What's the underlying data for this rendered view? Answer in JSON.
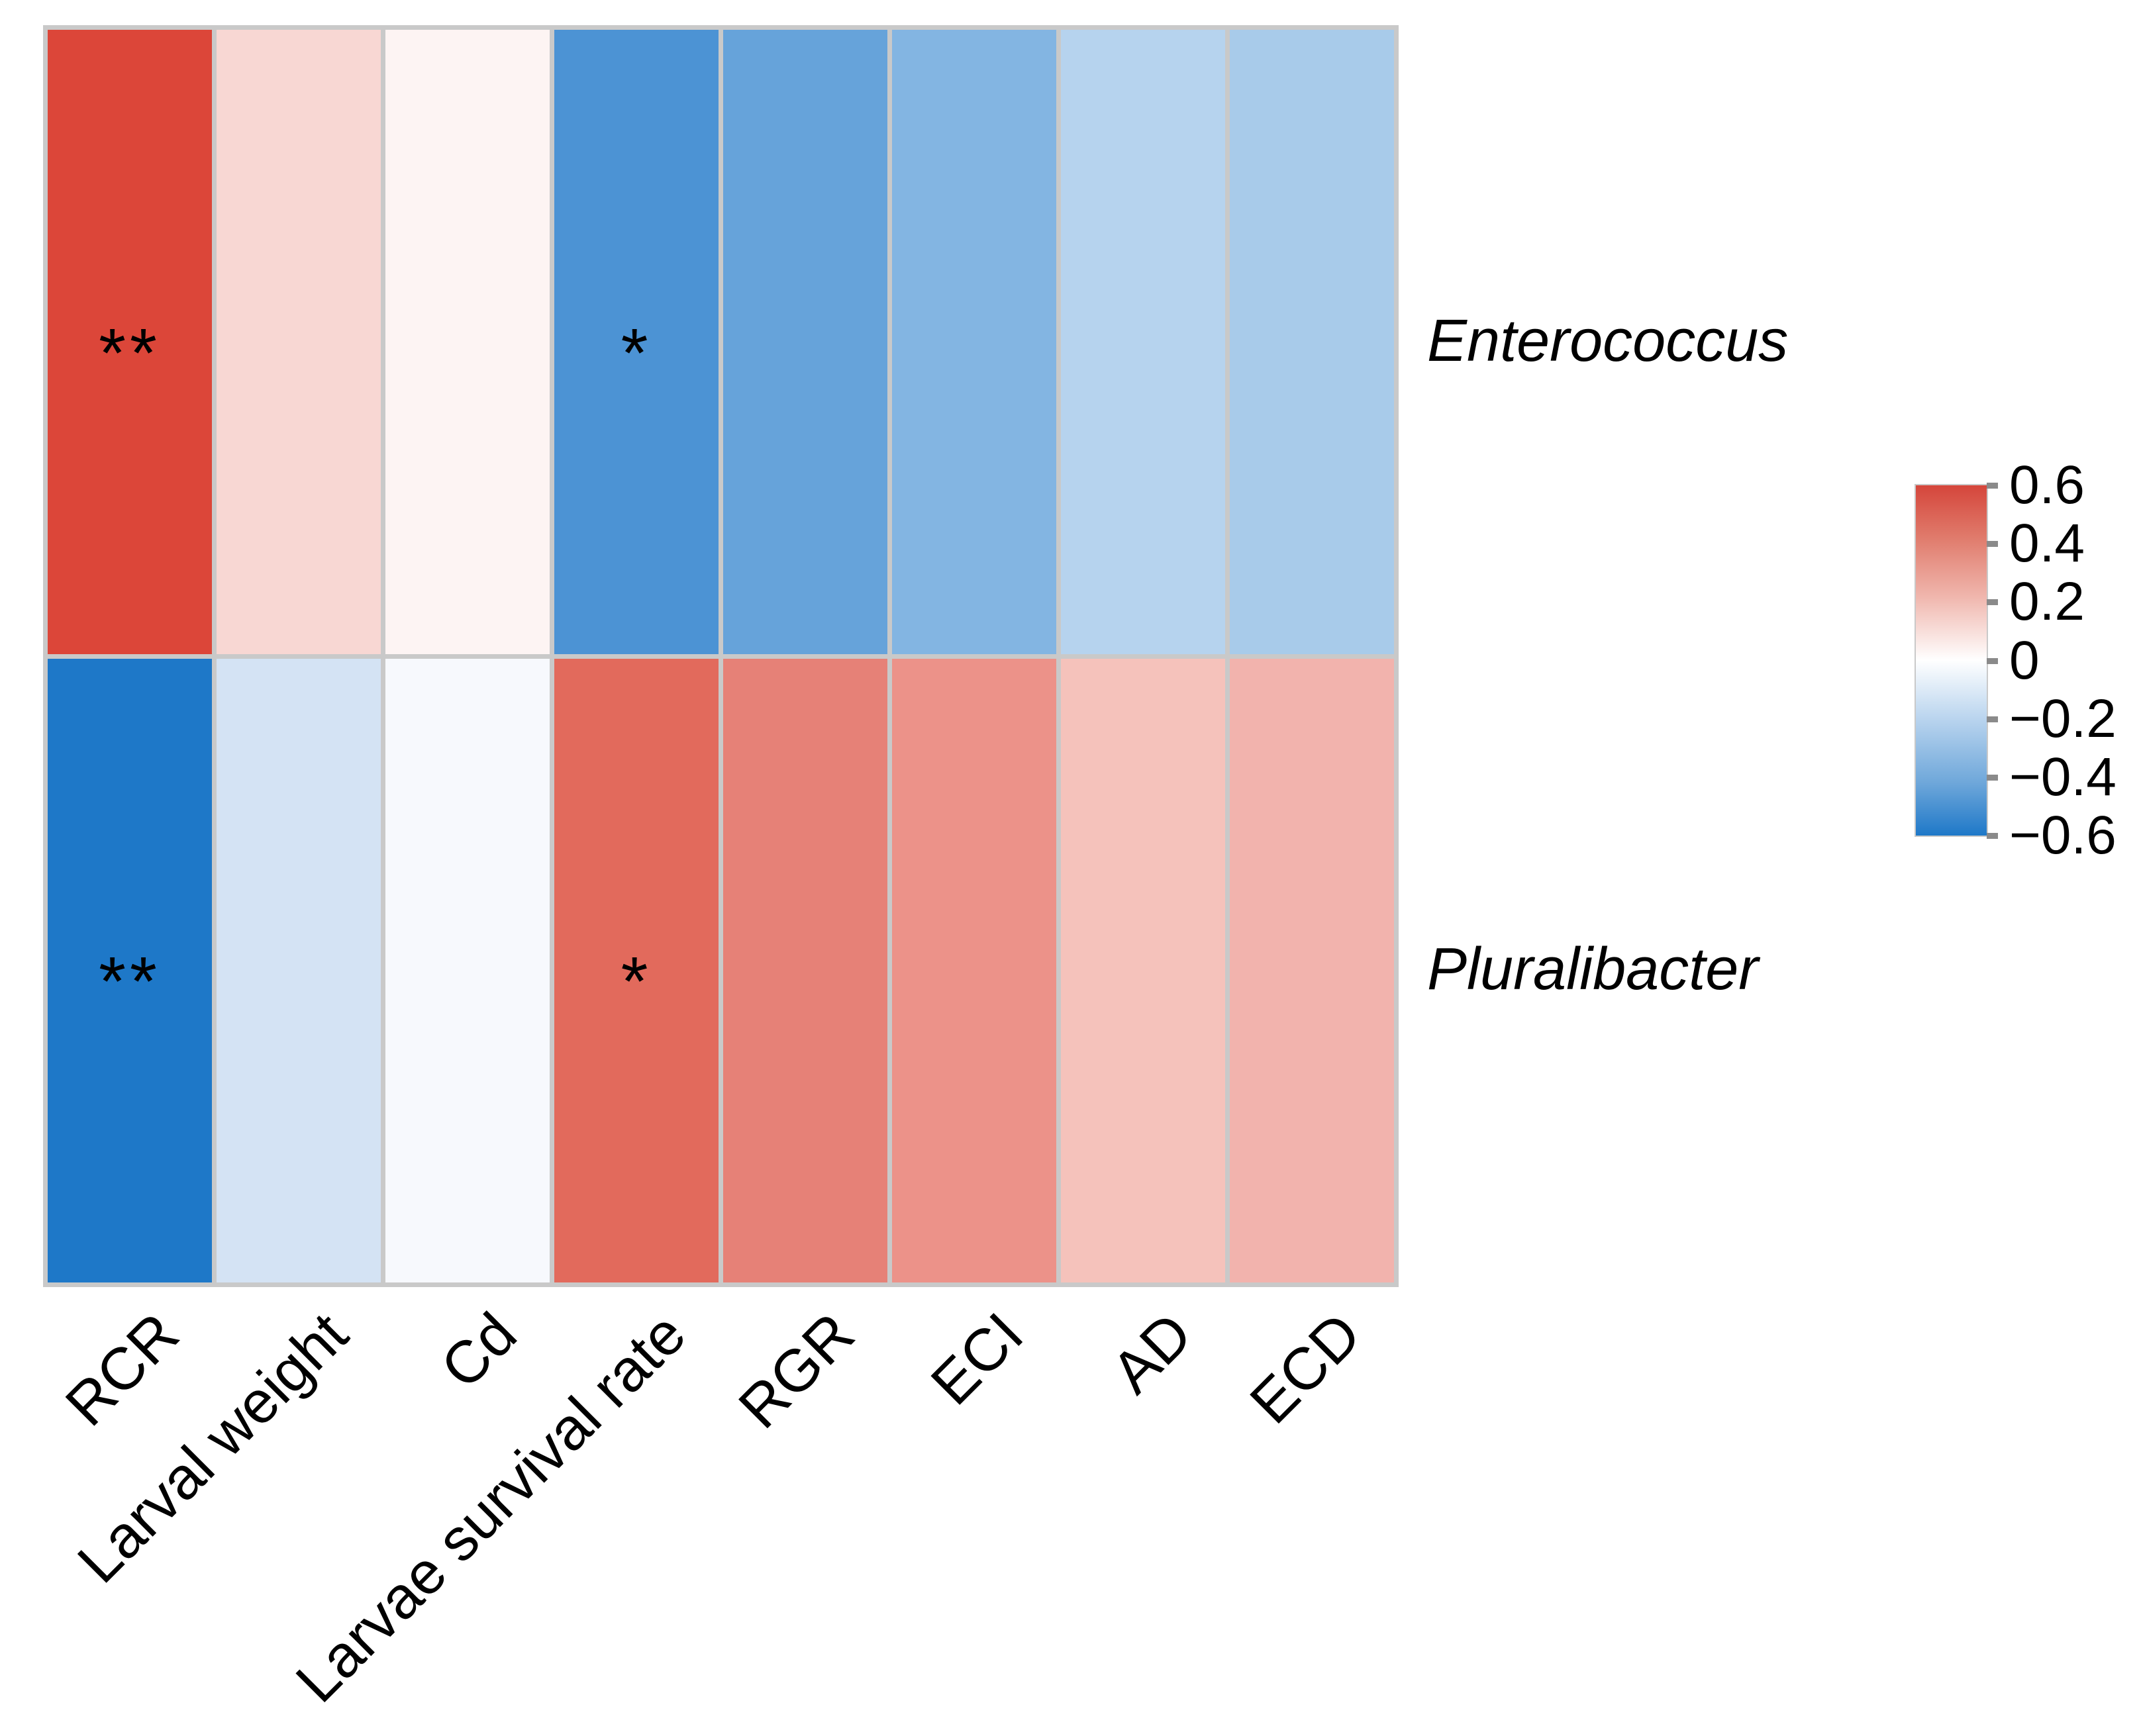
{
  "chart_data": {
    "type": "heatmap",
    "title": "",
    "columns": [
      "RCR",
      "Larval weight",
      "Cd",
      "Larvae survival rate",
      "RGR",
      "ECI",
      "AD",
      "ECD"
    ],
    "rows": [
      "Enterococcus",
      "Pluralibacter"
    ],
    "series": [
      {
        "name": "Enterococcus",
        "values": [
          0.6,
          0.15,
          0.03,
          -0.48,
          -0.42,
          -0.33,
          -0.2,
          -0.25
        ],
        "significance": [
          "**",
          "",
          "",
          "*",
          "",
          "",
          "",
          ""
        ],
        "cell_colors": [
          "#dc4639",
          "#f8d7d3",
          "#fdf4f3",
          "#4c93d4",
          "#66a3da",
          "#83b5e2",
          "#b6d3ee",
          "#a8cbea"
        ]
      },
      {
        "name": "Pluralibacter",
        "values": [
          -0.6,
          -0.12,
          -0.02,
          0.48,
          0.42,
          0.35,
          0.2,
          0.25
        ],
        "significance": [
          "**",
          "",
          "",
          "*",
          "",
          "",
          "",
          ""
        ],
        "cell_colors": [
          "#1e78c8",
          "#d4e3f4",
          "#f7f9fd",
          "#e26a5c",
          "#e68177",
          "#ec9289",
          "#f5c2bb",
          "#f2b3ad"
        ]
      }
    ],
    "colorbar": {
      "min": -0.6,
      "max": 0.6,
      "tick_values": [
        0.6,
        0.4,
        0.2,
        0,
        -0.2,
        -0.4,
        -0.6
      ],
      "tick_labels": [
        "0.6",
        "0.4",
        "0.2",
        "0",
        "−0.2",
        "−0.4",
        "−0.6"
      ],
      "high_color": "#d5463b",
      "mid_color": "#ffffff",
      "low_color": "#1e78c8",
      "gradient_stops": [
        [
          "0%",
          "#d5463b"
        ],
        [
          "15%",
          "#e07b6c"
        ],
        [
          "32%",
          "#f0b7ae"
        ],
        [
          "50%",
          "#ffffff"
        ],
        [
          "68%",
          "#b4d1ed"
        ],
        [
          "85%",
          "#6ea7da"
        ],
        [
          "100%",
          "#1e78c8"
        ]
      ],
      "tick_color": "#8a8a8a"
    },
    "grid_line_color": "#c9c9c9",
    "legend_position": "right",
    "axis_label_angle": 45
  }
}
